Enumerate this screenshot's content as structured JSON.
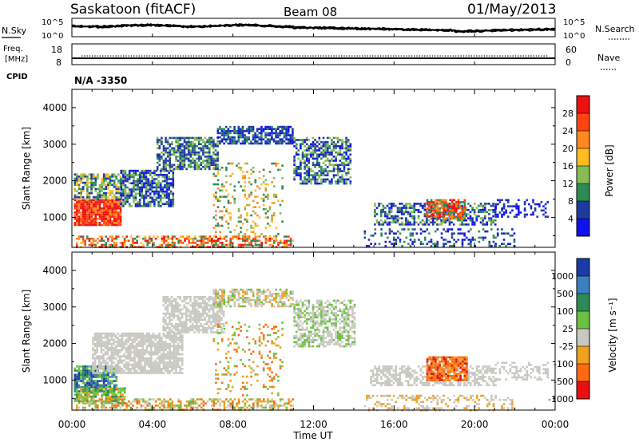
{
  "header": {
    "station": "Saskatoon (fitACF)",
    "beam": "Beam 08",
    "date": "01/May/2013"
  },
  "noise_panel": {
    "left_label": "N.Sky",
    "left_ticks": [
      "10^5",
      "10^0"
    ],
    "right_ticks": [
      "10^5",
      "10^0"
    ],
    "right_label": "N.Search"
  },
  "freq_panel": {
    "left_label_line1": "Freq.",
    "left_label_line2": "[MHz]",
    "left_ticks": [
      "18",
      "8"
    ],
    "right_ticks": [
      "60",
      "0"
    ],
    "right_label": "Nave"
  },
  "cpid": {
    "label": "CPID",
    "value": "N/A -3350"
  },
  "x_axis": {
    "label": "Time UT",
    "ticks": [
      "00:00",
      "04:00",
      "08:00",
      "12:00",
      "16:00",
      "20:00",
      "00:00"
    ]
  },
  "chart_data": [
    {
      "type": "heatmap",
      "name": "power-panel",
      "ylabel": "Slant Range [km]",
      "y_ticks": [
        1000,
        2000,
        3000,
        4000
      ],
      "ylim": [
        180,
        4500
      ],
      "xlim_hours": [
        0,
        24
      ],
      "colorbar": {
        "label": "Power [dB]",
        "ticks": [
          "28",
          "24",
          "20",
          "16",
          "12",
          "8",
          "4"
        ],
        "colors": [
          "#ee1111",
          "#ff4411",
          "#ff8822",
          "#ffbb22",
          "#88bb55",
          "#2e8b57",
          "#1f3a9e",
          "#1111ee"
        ]
      }
    },
    {
      "type": "heatmap",
      "name": "velocity-panel",
      "ylabel": "Slant Range [km]",
      "y_ticks": [
        1000,
        2000,
        3000,
        4000
      ],
      "ylim": [
        180,
        4500
      ],
      "xlim_hours": [
        0,
        24
      ],
      "colorbar": {
        "label": "Velocity [m s⁻¹]",
        "ticks": [
          "1000",
          "500",
          "100",
          "25",
          "-25",
          "-100",
          "-500",
          "-1000"
        ],
        "colors": [
          "#1a3ca8",
          "#3a7fbf",
          "#2e8b57",
          "#6cc040",
          "#c8c8c0",
          "#f0a020",
          "#ff6a10",
          "#e81010"
        ]
      }
    }
  ]
}
